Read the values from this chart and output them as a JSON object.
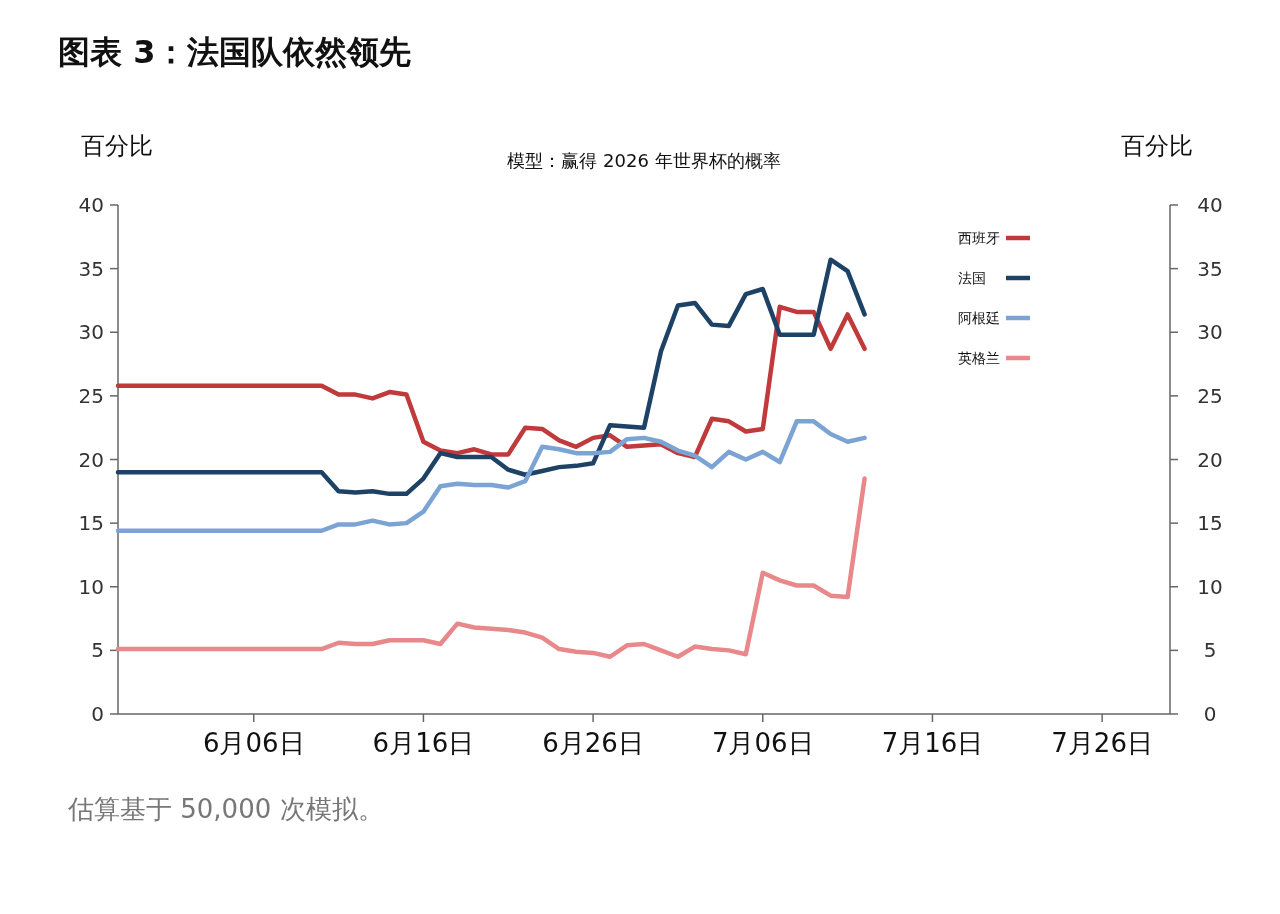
{
  "chart_data": {
    "type": "line",
    "title": "图表 3：法国队依然领先",
    "subtitle": "模型：赢得 2026 年世界杯的概率",
    "ylabel": "百分比",
    "y2label": "百分比",
    "annotations": [
      "估算基于 50,000 次模拟。"
    ],
    "xlim": [
      "--05-29",
      "--07-30"
    ],
    "xticks": [
      {
        "value": "--06-06",
        "label": "6月06日"
      },
      {
        "value": "--06-16",
        "label": "6月16日"
      },
      {
        "value": "--06-26",
        "label": "6月26日"
      },
      {
        "value": "--07-06",
        "label": "7月06日"
      },
      {
        "value": "--07-16",
        "label": "7月16日"
      },
      {
        "value": "--07-26",
        "label": "7月26日"
      }
    ],
    "ylim": [
      0,
      40
    ],
    "yticks": [
      0,
      5,
      10,
      15,
      20,
      25,
      30,
      35,
      40
    ],
    "y2lim": [
      0,
      40
    ],
    "y2ticks": [
      0,
      5,
      10,
      15,
      20,
      25,
      30,
      35,
      40
    ],
    "legend": "top right",
    "grid": false,
    "line_style": "solid",
    "marker": "none",
    "x": [
      "--05-29",
      "--06-10",
      "--06-11",
      "--06-12",
      "--06-13",
      "--06-14",
      "--06-15",
      "--06-16",
      "--06-17",
      "--06-18",
      "--06-19",
      "--06-20",
      "--06-21",
      "--06-22",
      "--06-23",
      "--06-24",
      "--06-25",
      "--06-26",
      "--06-27",
      "--06-28",
      "--06-29",
      "--06-30",
      "--07-01",
      "--07-02",
      "--07-03",
      "--07-04",
      "--07-05",
      "--07-06",
      "--07-07",
      "--07-08",
      "--07-09",
      "--07-10",
      "--07-11",
      "--07-12"
    ],
    "series": [
      {
        "name": "西班牙",
        "color": "#c0393b",
        "values": [
          25.8,
          25.8,
          25.1,
          25.1,
          24.8,
          25.3,
          25.1,
          21.4,
          20.7,
          20.5,
          20.8,
          20.4,
          20.4,
          22.5,
          22.4,
          21.5,
          21.0,
          21.7,
          21.9,
          21.0,
          21.1,
          21.2,
          20.5,
          20.2,
          23.2,
          23.0,
          22.2,
          22.4,
          32.0,
          31.6,
          31.6,
          28.7,
          31.4,
          28.7
        ]
      },
      {
        "name": "法国",
        "color": "#1d4266",
        "values": [
          19.0,
          19.0,
          17.5,
          17.4,
          17.5,
          17.3,
          17.3,
          18.5,
          20.5,
          20.2,
          20.2,
          20.2,
          19.2,
          18.8,
          19.1,
          19.4,
          19.5,
          19.7,
          22.7,
          22.6,
          22.5,
          28.5,
          32.1,
          32.3,
          30.6,
          30.5,
          33.0,
          33.4,
          29.8,
          29.8,
          29.8,
          35.7,
          34.8,
          31.4
        ]
      },
      {
        "name": "阿根廷",
        "color": "#7ba3d4",
        "values": [
          14.4,
          14.4,
          14.9,
          14.9,
          15.2,
          14.9,
          15.0,
          15.9,
          17.9,
          18.1,
          18.0,
          18.0,
          17.8,
          18.3,
          21.0,
          20.8,
          20.5,
          20.5,
          20.6,
          21.6,
          21.7,
          21.4,
          20.7,
          20.3,
          19.4,
          20.6,
          20.0,
          20.6,
          19.8,
          23.0,
          23.0,
          22.0,
          21.4,
          21.7
        ]
      },
      {
        "name": "英格兰",
        "color": "#e8888a",
        "values": [
          5.1,
          5.1,
          5.6,
          5.5,
          5.5,
          5.8,
          5.8,
          5.8,
          5.5,
          7.1,
          6.8,
          6.7,
          6.6,
          6.4,
          6.0,
          5.1,
          4.9,
          4.8,
          4.5,
          5.4,
          5.5,
          5.0,
          4.5,
          5.3,
          5.1,
          5.0,
          4.7,
          11.1,
          10.5,
          10.1,
          10.1,
          9.3,
          9.2,
          18.5
        ]
      }
    ]
  }
}
